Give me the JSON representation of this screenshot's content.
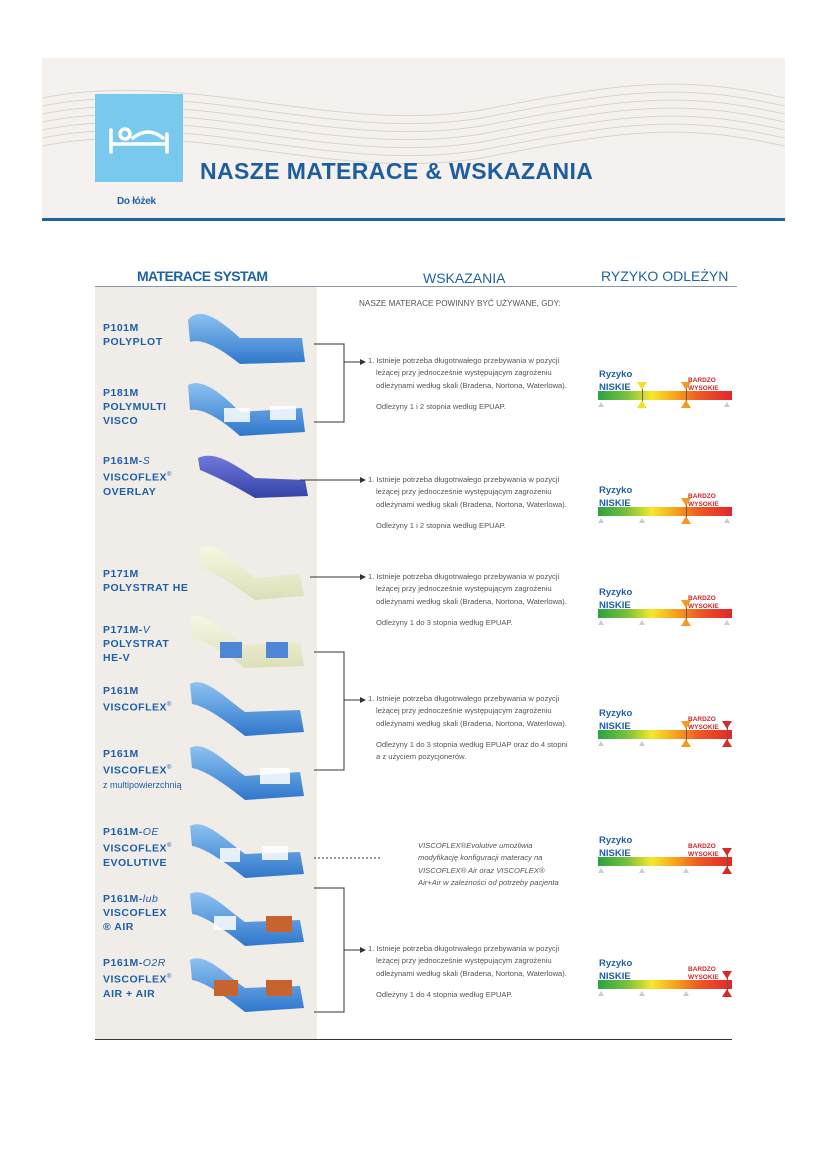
{
  "header": {
    "title": "NASZE MATERACE & WSKAZANIA",
    "category": "Do łóżek",
    "icon": "bed-icon",
    "accent": "#1d63a8",
    "icon_bg": "#79c9ef"
  },
  "columns": {
    "products": "MATERACE SYSTAM",
    "indications": "WSKAZANIA",
    "risk": "RYZYKO ODLEŻYN"
  },
  "intro": "NASZE MATERACE POWINNY BYĆ UŻYWANE, GDY:",
  "products": [
    {
      "code": "P101M",
      "name": "POLYPLOT"
    },
    {
      "code": "P181M",
      "name": "POLYMULTI",
      "name2": "VISCO"
    },
    {
      "code": "P161M-",
      "suffix": "S",
      "name": "VISCOFLEX",
      "sup": "®",
      "name2": "OVERLAY"
    },
    {
      "code": "P171M",
      "name": "POLYSTRAT HE"
    },
    {
      "code": "P171M-",
      "suffix": "V",
      "name": "POLYSTRAT",
      "name2": "HE-V"
    },
    {
      "code": "P161M",
      "name": "VISCOFLEX",
      "sup": "®"
    },
    {
      "code": "P161M",
      "name": "VISCOFLEX",
      "sup": "®",
      "extra": "z multipowierzchnią"
    },
    {
      "code": "P161M-",
      "suffix": "OE",
      "name": "VISCOFLEX",
      "sup": "®",
      "name2": "EVOLUTIVE"
    },
    {
      "code": "P161M-",
      "suffix": "lub",
      "name": "VISCOFLEX",
      "name2": "® AIR"
    },
    {
      "code": "P161M-",
      "suffix": "O2R",
      "name": "VISCOFLEX",
      "sup": "®",
      "name2": "AIR + AIR"
    }
  ],
  "indications": [
    {
      "text": "1. Istnieje potrzeba długotrwałego przebywania w pozycji leżącej przy jednocześnie występującym zagrożeniu odleżynami według skali (Bradena, Nortona, Waterlowa).",
      "grade": "Odleżyny 1 i 2 stopnia według EPUAP."
    },
    {
      "text": "1. Istnieje potrzeba długotrwałego przebywania w pozycji leżącej przy jednocześnie występującym zagrożeniu odleżynami według skali (Bradena, Nortona, Waterlowa).",
      "grade": "Odleżyny 1 i 2 stopnia według EPUAP."
    },
    {
      "text": "1. Istnieje potrzeba długotrwałego przebywania w pozycji leżącej przy jednocześnie występującym zagrożeniu odleżynami według skali (Bradena, Nortona, Waterlowa).",
      "grade": "Odleżyny 1 do 3 stopnia według EPUAP."
    },
    {
      "text": "1. Istnieje potrzeba długotrwałego przebywania w pozycji leżącej przy jednocześnie występującym zagrożeniu odleżynami według skali (Bradena, Nortona, Waterlowa).",
      "grade": "Odleżyny 1 do 3 stopnia według EPUAP oraz do 4 stopni a z użyciem pozycjonerów."
    },
    {
      "text": "1. Istnieje potrzeba długotrwałego przebywania w pozycji leżącej przy jednocześnie występującym zagrożeniu odleżynami według skali (Bradena, Nortona, Waterlowa).",
      "grade": "Odleżyny 1 do 4 stopnia według EPUAP."
    }
  ],
  "note": "VISCOFLEX®Evolutive umożliwia modyfikację konfiguracji materacy na VISCOFLEX® Air oraz VISCOFLEX® Air+Air w zależności od potrzeby pacjenta",
  "risk": {
    "low": "Ryzyko NISKIE",
    "high": "BARDZO WYSOKIE",
    "levels": [
      {
        "markers": [
          0.33,
          0.66
        ]
      },
      {
        "markers": [
          0.66
        ]
      },
      {
        "markers": [
          0.66
        ]
      },
      {
        "markers": [
          0.66,
          0.96
        ]
      },
      {
        "markers": [
          0.96
        ]
      },
      {
        "markers": [
          0.96
        ]
      }
    ]
  }
}
